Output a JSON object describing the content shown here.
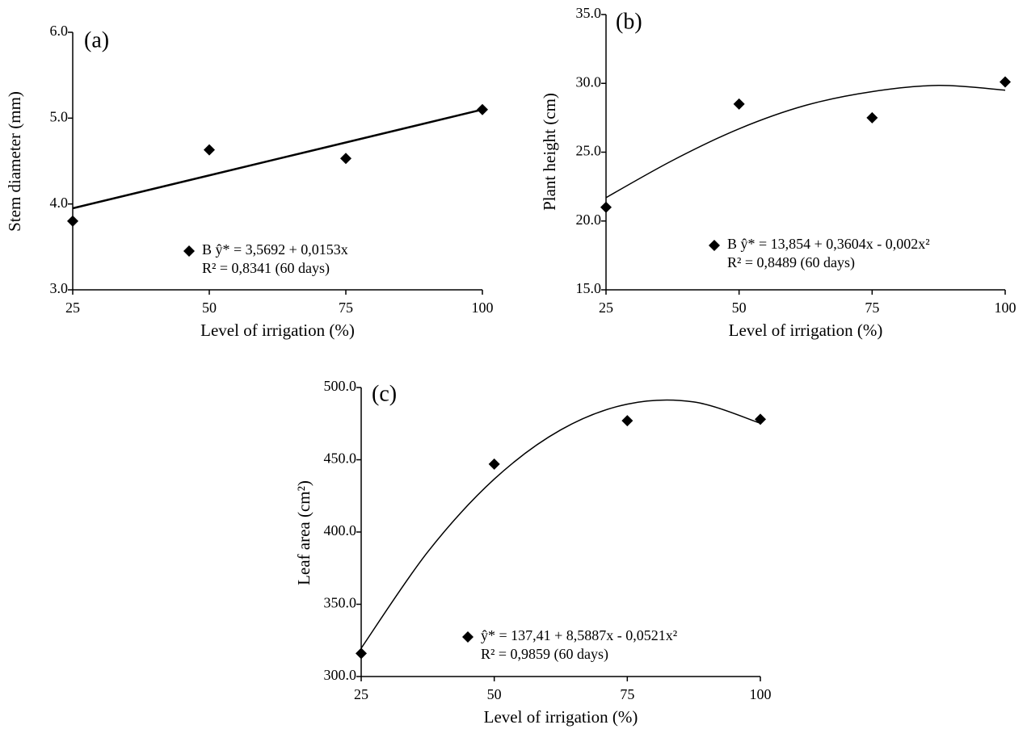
{
  "chart_data": [
    {
      "type": "scatter",
      "title": "(a)",
      "x_label": "Level of irrigation (%)",
      "y_label": "Stem diameter (mm)",
      "x": [
        25,
        50,
        75,
        100
      ],
      "values": [
        3.8,
        4.63,
        4.53,
        5.1
      ],
      "color": "#000000",
      "fit_x": [
        25,
        100
      ],
      "fit_values": [
        3.95,
        5.1
      ],
      "annotation": [
        "B ŷ* = 3,5692 + 0,0153x",
        "R² = 0,8341 (60 days)"
      ],
      "xlim": [
        25,
        100
      ],
      "ylim": [
        3,
        6
      ],
      "xticks": [
        25,
        50,
        75,
        100
      ],
      "yticks": [
        {
          "value": 3,
          "label": "3.0"
        },
        {
          "value": 4,
          "label": "4.0"
        },
        {
          "value": 5,
          "label": "5.0"
        },
        {
          "value": 6,
          "label": "6.0"
        }
      ]
    },
    {
      "type": "scatter",
      "title": "(b)",
      "x_label": "Level of irrigation (%)",
      "y_label": "Plant height (cm)",
      "x": [
        25,
        50,
        75,
        100
      ],
      "values": [
        21.0,
        28.5,
        27.5,
        30.1
      ],
      "color": "#000000",
      "fit_x": [
        25,
        37.5,
        50,
        62.5,
        75,
        87.5,
        100
      ],
      "fit_values": [
        21.7,
        24.4,
        26.7,
        28.4,
        29.4,
        29.85,
        29.5
      ],
      "annotation": [
        "B ŷ* = 13,854 + 0,3604x - 0,002x²",
        "R² = 0,8489 (60 days)"
      ],
      "xlim": [
        25,
        100
      ],
      "ylim": [
        15,
        35
      ],
      "xticks": [
        25,
        50,
        75,
        100
      ],
      "yticks": [
        {
          "value": 15,
          "label": "15.0"
        },
        {
          "value": 20,
          "label": "20.0"
        },
        {
          "value": 25,
          "label": "25.0"
        },
        {
          "value": 30,
          "label": "30.0"
        },
        {
          "value": 35,
          "label": "35.0"
        }
      ]
    },
    {
      "type": "scatter",
      "title": "(c)",
      "x_label": "Level of irrigation (%)",
      "y_label": "Leaf area (cm²)",
      "x": [
        25,
        50,
        75,
        100
      ],
      "values": [
        316,
        447,
        477,
        478
      ],
      "color": "#000000",
      "fit_x": [
        25,
        37.5,
        50,
        62.5,
        75,
        87.5,
        100
      ],
      "fit_values": [
        319.6,
        386.2,
        436.6,
        470.7,
        488.5,
        490.0,
        475.3
      ],
      "annotation": [
        "ŷ* = 137,41 + 8,5887x - 0,0521x²",
        "R² = 0,9859 (60 days)"
      ],
      "xlim": [
        25,
        100
      ],
      "ylim": [
        300,
        500
      ],
      "xticks": [
        25,
        50,
        75,
        100
      ],
      "yticks": [
        {
          "value": 300,
          "label": "300.0"
        },
        {
          "value": 350,
          "label": "350.0"
        },
        {
          "value": 400,
          "label": "400.0"
        },
        {
          "value": 450,
          "label": "450.0"
        },
        {
          "value": 500,
          "label": "500.0"
        }
      ]
    }
  ]
}
